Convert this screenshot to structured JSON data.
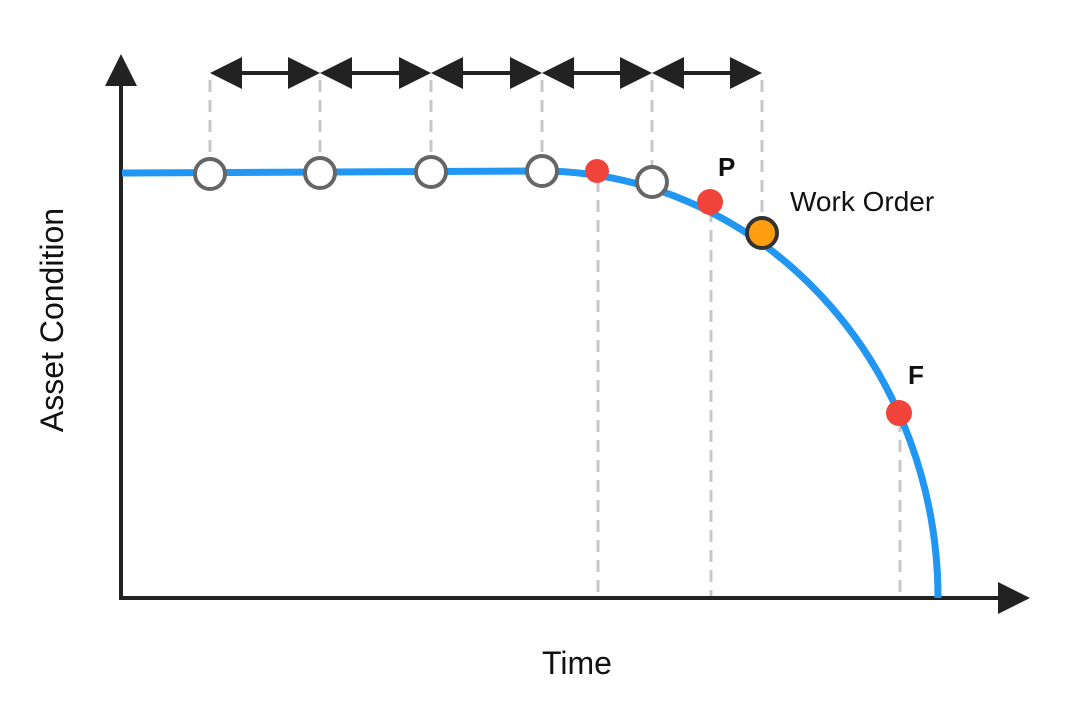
{
  "axes": {
    "y_label": "Asset Condition",
    "x_label": "Time"
  },
  "markers": {
    "p": "P",
    "f": "F",
    "work_order": "Work Order"
  }
}
